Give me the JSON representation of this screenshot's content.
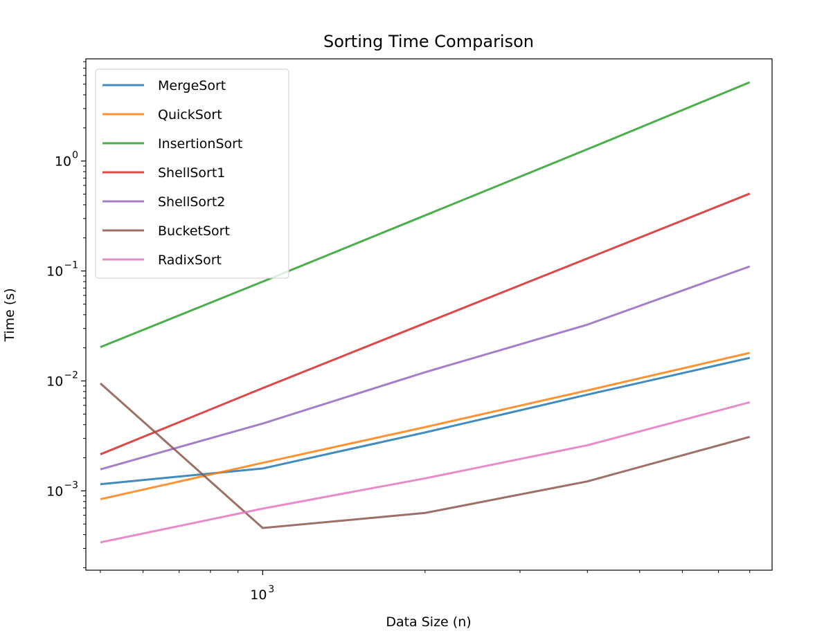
{
  "chart_data": {
    "type": "line",
    "title": "Sorting Time Comparison",
    "xlabel": "Data Size (n)",
    "ylabel": "Time (s)",
    "x_scale": "log",
    "y_scale": "log",
    "xlim": [
      470,
      8800
    ],
    "ylim": [
      0.00019,
      8.5
    ],
    "x": [
      500,
      1000,
      2000,
      4000,
      8000
    ],
    "x_ticks": [
      {
        "value": 1000,
        "base": "10",
        "exp": "3"
      }
    ],
    "y_ticks": [
      {
        "value": 0.001,
        "base": "10",
        "exp": "−3"
      },
      {
        "value": 0.01,
        "base": "10",
        "exp": "−2"
      },
      {
        "value": 0.1,
        "base": "10",
        "exp": "−1"
      },
      {
        "value": 1,
        "base": "10",
        "exp": "0"
      }
    ],
    "grid": false,
    "legend_position": "top-left",
    "series": [
      {
        "name": "MergeSort",
        "color": "#1f77b4",
        "values": [
          0.00115,
          0.0016,
          0.0034,
          0.0075,
          0.0162
        ]
      },
      {
        "name": "QuickSort",
        "color": "#ff7f0e",
        "values": [
          0.00084,
          0.0018,
          0.0038,
          0.0082,
          0.018
        ]
      },
      {
        "name": "InsertionSort",
        "color": "#2ca02c",
        "values": [
          0.0203,
          0.08,
          0.32,
          1.28,
          5.2
        ]
      },
      {
        "name": "ShellSort1",
        "color": "#d62728",
        "values": [
          0.00215,
          0.0086,
          0.0335,
          0.13,
          0.505
        ]
      },
      {
        "name": "ShellSort2",
        "color": "#9467bd",
        "values": [
          0.00157,
          0.0041,
          0.012,
          0.0325,
          0.11
        ]
      },
      {
        "name": "BucketSort",
        "color": "#8c564b",
        "values": [
          0.0095,
          0.00046,
          0.00063,
          0.00122,
          0.0031
        ]
      },
      {
        "name": "RadixSort",
        "color": "#e377c2",
        "values": [
          0.00034,
          0.00069,
          0.0013,
          0.0026,
          0.0064
        ]
      }
    ]
  }
}
